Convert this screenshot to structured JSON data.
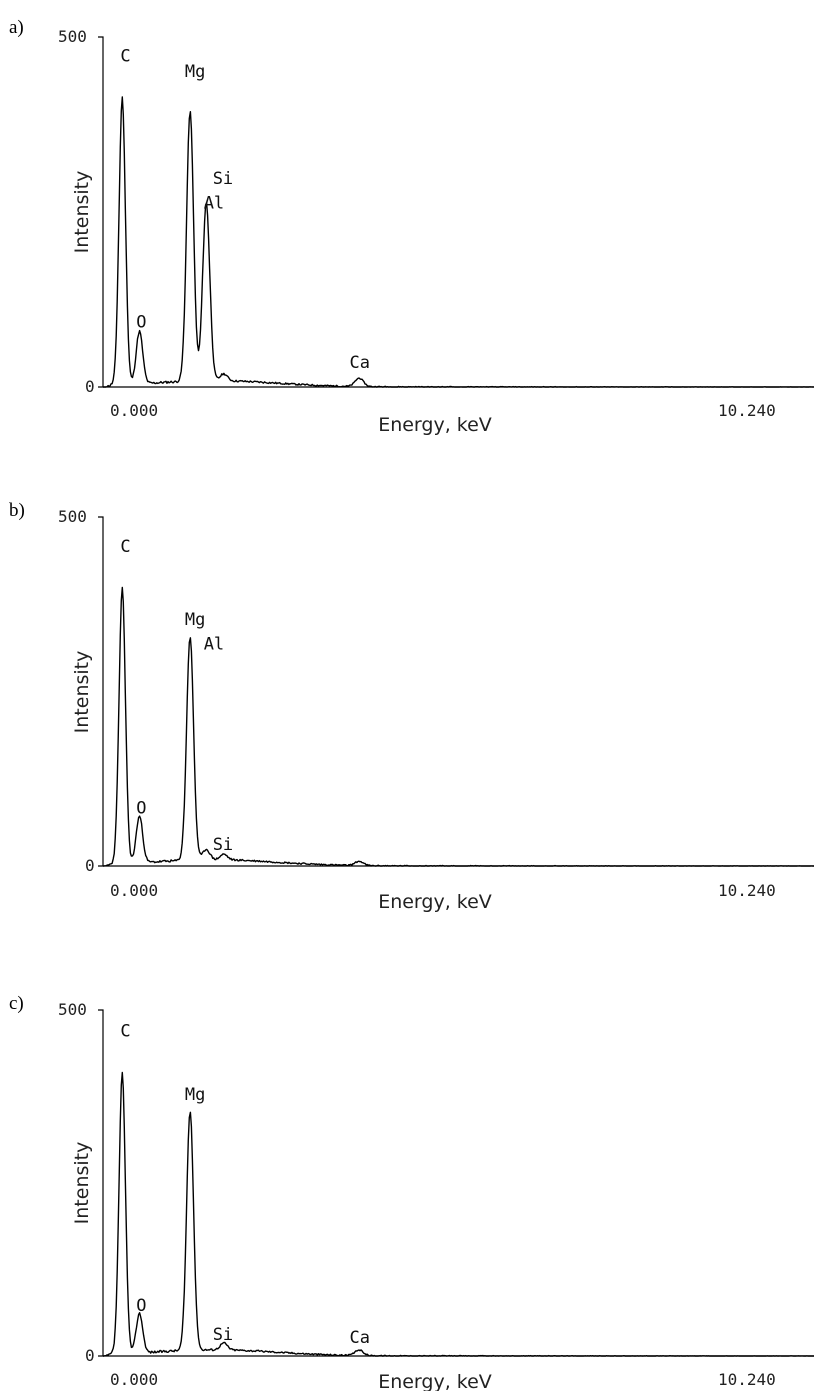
{
  "chart_data": [
    {
      "type": "line",
      "panel_label": "a)",
      "title": "",
      "xlabel": "Energy, keV",
      "ylabel": "Intensity",
      "xlim": [
        0.0,
        10.24
      ],
      "ylim": [
        0,
        500
      ],
      "x_tick_labels": [
        "0.000",
        "10.240"
      ],
      "y_tick_labels": [
        "0",
        "500"
      ],
      "peaks": [
        {
          "element": "C",
          "energy": 0.277,
          "intensity": 410
        },
        {
          "element": "O",
          "energy": 0.525,
          "intensity": 75
        },
        {
          "element": "Mg",
          "energy": 1.254,
          "intensity": 385
        },
        {
          "element": "Al",
          "energy": 1.487,
          "intensity": 255
        },
        {
          "element": "Si",
          "energy": 1.74,
          "intensity": 10
        },
        {
          "element": "Ca",
          "energy": 3.69,
          "intensity": 12
        }
      ],
      "peak_labels": [
        {
          "text": "C",
          "energy": 0.25,
          "intensity": 465
        },
        {
          "text": "Mg",
          "energy": 1.18,
          "intensity": 443
        },
        {
          "text": "Si",
          "energy": 1.58,
          "intensity": 290
        },
        {
          "text": "Al",
          "energy": 1.45,
          "intensity": 255
        },
        {
          "text": "O",
          "energy": 0.48,
          "intensity": 85
        },
        {
          "text": "Ca",
          "energy": 3.55,
          "intensity": 27
        }
      ]
    },
    {
      "type": "line",
      "panel_label": "b)",
      "title": "",
      "xlabel": "Energy, keV",
      "ylabel": "Intensity",
      "xlim": [
        0.0,
        10.24
      ],
      "ylim": [
        0,
        500
      ],
      "x_tick_labels": [
        "0.000",
        "10.240"
      ],
      "y_tick_labels": [
        "0",
        "500"
      ],
      "peaks": [
        {
          "element": "C",
          "energy": 0.277,
          "intensity": 395
        },
        {
          "element": "O",
          "energy": 0.525,
          "intensity": 67
        },
        {
          "element": "Mg",
          "energy": 1.254,
          "intensity": 320
        },
        {
          "element": "Al",
          "energy": 1.487,
          "intensity": 15
        },
        {
          "element": "Si",
          "energy": 1.74,
          "intensity": 8
        },
        {
          "element": "Ca",
          "energy": 3.69,
          "intensity": 6
        }
      ],
      "peak_labels": [
        {
          "text": "C",
          "energy": 0.25,
          "intensity": 450
        },
        {
          "text": "Mg",
          "energy": 1.18,
          "intensity": 345
        },
        {
          "text": "Al",
          "energy": 1.45,
          "intensity": 310
        },
        {
          "text": "O",
          "energy": 0.48,
          "intensity": 75
        },
        {
          "text": "Si",
          "energy": 1.58,
          "intensity": 23
        }
      ]
    },
    {
      "type": "line",
      "panel_label": "c)",
      "title": "",
      "xlabel": "Energy, keV",
      "ylabel": "Intensity",
      "xlim": [
        0.0,
        10.24
      ],
      "ylim": [
        0,
        500
      ],
      "x_tick_labels": [
        "0.000",
        "10.240"
      ],
      "y_tick_labels": [
        "0",
        "500"
      ],
      "peaks": [
        {
          "element": "C",
          "energy": 0.277,
          "intensity": 405
        },
        {
          "element": "O",
          "energy": 0.525,
          "intensity": 57
        },
        {
          "element": "Mg",
          "energy": 1.254,
          "intensity": 345
        },
        {
          "element": "Si",
          "energy": 1.74,
          "intensity": 10
        },
        {
          "element": "Ca",
          "energy": 3.69,
          "intensity": 8
        }
      ],
      "peak_labels": [
        {
          "text": "C",
          "energy": 0.25,
          "intensity": 462
        },
        {
          "text": "Mg",
          "energy": 1.18,
          "intensity": 370
        },
        {
          "text": "O",
          "energy": 0.48,
          "intensity": 65
        },
        {
          "text": "Si",
          "energy": 1.58,
          "intensity": 23
        },
        {
          "text": "Ca",
          "energy": 3.55,
          "intensity": 19
        }
      ]
    }
  ]
}
